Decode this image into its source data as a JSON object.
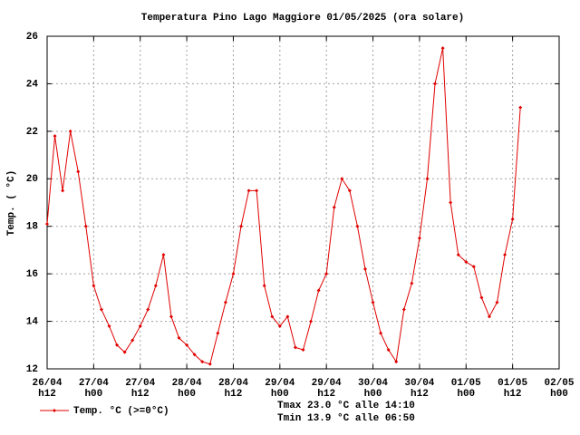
{
  "chart_data": {
    "type": "line",
    "title": "Temperatura Pino Lago Maggiore 01/05/2025 (ora solare)",
    "ylabel": "Temp. ( °C)",
    "x": [
      "2025-04-26T12:00",
      "2025-04-26T14:00",
      "2025-04-26T16:00",
      "2025-04-26T18:00",
      "2025-04-26T20:00",
      "2025-04-26T22:00",
      "2025-04-27T00:00",
      "2025-04-27T02:00",
      "2025-04-27T04:00",
      "2025-04-27T06:00",
      "2025-04-27T08:00",
      "2025-04-27T10:00",
      "2025-04-27T12:00",
      "2025-04-27T14:00",
      "2025-04-27T16:00",
      "2025-04-27T18:00",
      "2025-04-27T20:00",
      "2025-04-27T22:00",
      "2025-04-28T00:00",
      "2025-04-28T02:00",
      "2025-04-28T04:00",
      "2025-04-28T06:00",
      "2025-04-28T08:00",
      "2025-04-28T10:00",
      "2025-04-28T12:00",
      "2025-04-28T14:00",
      "2025-04-28T16:00",
      "2025-04-28T18:00",
      "2025-04-28T20:00",
      "2025-04-28T22:00",
      "2025-04-29T00:00",
      "2025-04-29T02:00",
      "2025-04-29T04:00",
      "2025-04-29T06:00",
      "2025-04-29T08:00",
      "2025-04-29T10:00",
      "2025-04-29T12:00",
      "2025-04-29T14:00",
      "2025-04-29T16:00",
      "2025-04-29T18:00",
      "2025-04-29T20:00",
      "2025-04-29T22:00",
      "2025-04-30T00:00",
      "2025-04-30T02:00",
      "2025-04-30T04:00",
      "2025-04-30T06:00",
      "2025-04-30T08:00",
      "2025-04-30T10:00",
      "2025-04-30T12:00",
      "2025-04-30T14:00",
      "2025-04-30T16:00",
      "2025-04-30T18:00",
      "2025-04-30T20:00",
      "2025-04-30T22:00",
      "2025-05-01T00:00",
      "2025-05-01T02:00",
      "2025-05-01T04:00",
      "2025-05-01T06:00",
      "2025-05-01T08:00",
      "2025-05-01T10:00",
      "2025-05-01T12:00",
      "2025-05-01T14:00"
    ],
    "series": [
      {
        "name": "Temp. °C (>=0°C)",
        "color": "#e00000",
        "values": [
          18.1,
          21.8,
          19.5,
          22.0,
          20.3,
          18.0,
          15.5,
          14.5,
          13.8,
          13.0,
          12.7,
          13.2,
          13.8,
          14.5,
          15.5,
          16.8,
          14.2,
          13.3,
          13.0,
          12.6,
          12.3,
          12.2,
          13.5,
          14.8,
          16.0,
          18.0,
          19.5,
          19.5,
          15.5,
          14.2,
          13.8,
          14.2,
          12.9,
          12.8,
          14.0,
          15.3,
          16.0,
          18.8,
          20.0,
          19.5,
          18.0,
          16.2,
          14.8,
          13.5,
          12.8,
          12.3,
          14.5,
          15.6,
          17.5,
          20.0,
          24.0,
          25.5,
          19.0,
          16.8,
          16.5,
          16.3,
          15.0,
          14.2,
          14.8,
          16.8,
          18.3,
          23.0
        ]
      }
    ],
    "xlim": [
      "2025-04-26T12:00",
      "2025-05-02T00:00"
    ],
    "xticks": [
      {
        "value": "2025-04-26T12:00",
        "label": "26/04\nh12"
      },
      {
        "value": "2025-04-27T00:00",
        "label": "27/04\nh00"
      },
      {
        "value": "2025-04-27T12:00",
        "label": "27/04\nh12"
      },
      {
        "value": "2025-04-28T00:00",
        "label": "28/04\nh00"
      },
      {
        "value": "2025-04-28T12:00",
        "label": "28/04\nh12"
      },
      {
        "value": "2025-04-29T00:00",
        "label": "29/04\nh00"
      },
      {
        "value": "2025-04-29T12:00",
        "label": "29/04\nh12"
      },
      {
        "value": "2025-04-30T00:00",
        "label": "30/04\nh00"
      },
      {
        "value": "2025-04-30T12:00",
        "label": "30/04\nh12"
      },
      {
        "value": "2025-05-01T00:00",
        "label": "01/05\nh00"
      },
      {
        "value": "2025-05-01T12:00",
        "label": "01/05\nh12"
      },
      {
        "value": "2025-05-02T00:00",
        "label": "02/05\nh00"
      }
    ],
    "ylim": [
      12,
      26
    ],
    "yticks": [
      12,
      14,
      16,
      18,
      20,
      22,
      24,
      26
    ],
    "grid": true,
    "annotations": [
      "Tmax 23.0 °C alle 14:10",
      "Tmin 13.9 °C alle 06:50"
    ]
  }
}
